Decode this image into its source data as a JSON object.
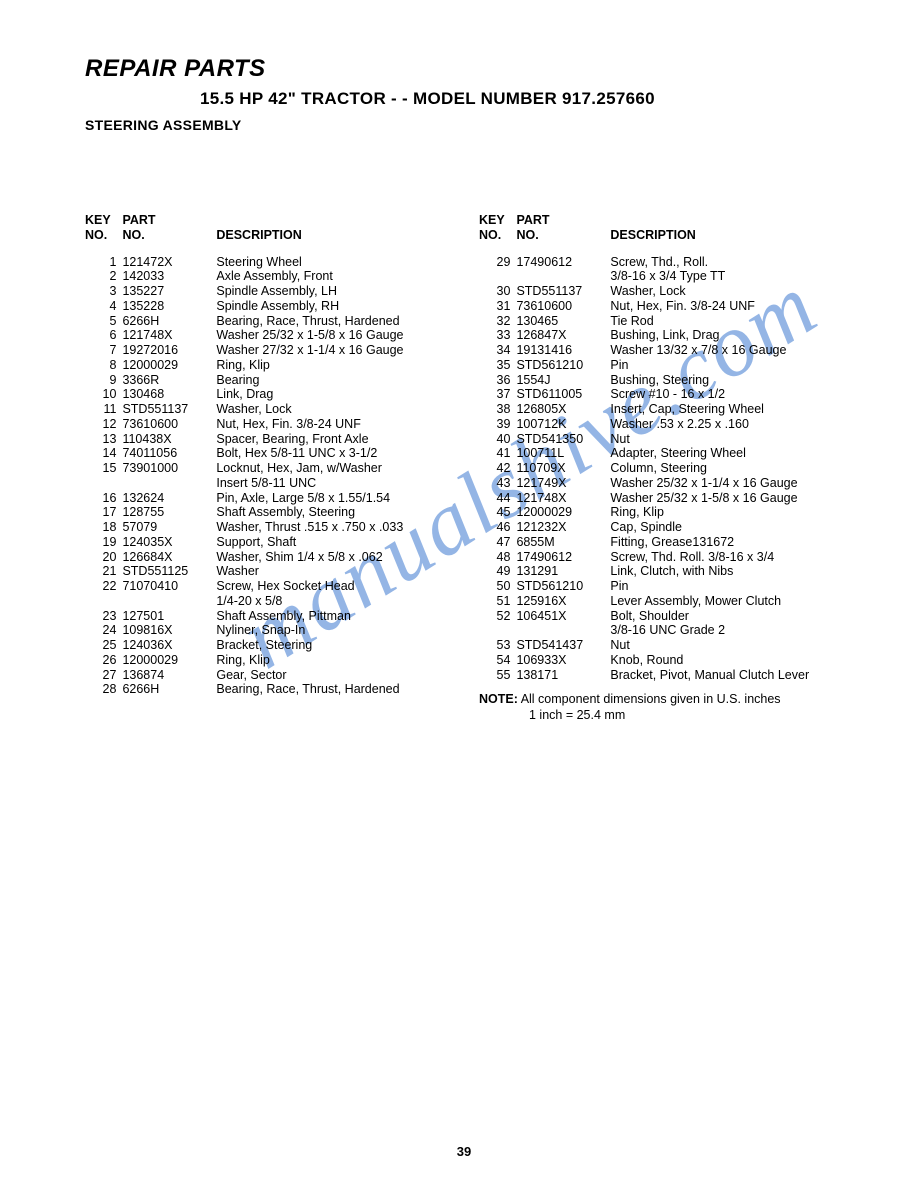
{
  "titles": {
    "main": "REPAIR PARTS",
    "sub": "15.5 HP 42\" TRACTOR - - MODEL NUMBER 917.257660",
    "section": "STEERING ASSEMBLY"
  },
  "headers": {
    "key": "KEY\nNO.",
    "part": "PART\nNO.",
    "desc": "DESCRIPTION"
  },
  "left_parts": [
    {
      "key": "1",
      "part": "121472X",
      "desc": "Steering Wheel"
    },
    {
      "key": "2",
      "part": "142033",
      "desc": "Axle Assembly, Front"
    },
    {
      "key": "3",
      "part": "135227",
      "desc": "Spindle Assembly, LH"
    },
    {
      "key": "4",
      "part": "135228",
      "desc": "Spindle Assembly, RH"
    },
    {
      "key": "5",
      "part": "6266H",
      "desc": "Bearing, Race, Thrust, Hardened"
    },
    {
      "key": "6",
      "part": "121748X",
      "desc": "Washer  25/32 x 1-5/8 x 16 Gauge"
    },
    {
      "key": "7",
      "part": "19272016",
      "desc": "Washer  27/32 x 1-1/4 x 16 Gauge"
    },
    {
      "key": "8",
      "part": "12000029",
      "desc": "Ring, Klip"
    },
    {
      "key": "9",
      "part": "3366R",
      "desc": "Bearing"
    },
    {
      "key": "10",
      "part": "130468",
      "desc": "Link, Drag"
    },
    {
      "key": "11",
      "part": "STD551137",
      "desc": "Washer, Lock"
    },
    {
      "key": "12",
      "part": "73610600",
      "desc": "Nut, Hex, Fin.  3/8-24 UNF"
    },
    {
      "key": "13",
      "part": "110438X",
      "desc": "Spacer, Bearing, Front Axle"
    },
    {
      "key": "14",
      "part": "74011056",
      "desc": "Bolt, Hex  5/8-11 UNC x 3-1/2"
    },
    {
      "key": "15",
      "part": "73901000",
      "desc": "Locknut, Hex, Jam, w/Washer\nInsert  5/8-11 UNC"
    },
    {
      "key": "16",
      "part": "132624",
      "desc": "Pin, Axle, Large  5/8 x 1.55/1.54"
    },
    {
      "key": "17",
      "part": "128755",
      "desc": "Shaft Assembly, Steering"
    },
    {
      "key": "18",
      "part": "57079",
      "desc": "Washer, Thrust  .515 x .750 x .033"
    },
    {
      "key": "19",
      "part": "124035X",
      "desc": "Support, Shaft"
    },
    {
      "key": "20",
      "part": "126684X",
      "desc": "Washer, Shim  1/4 x 5/8 x .062"
    },
    {
      "key": "21",
      "part": "STD551125",
      "desc": "Washer"
    },
    {
      "key": "22",
      "part": "71070410",
      "desc": "Screw, Hex Socket Head\n1/4-20 x 5/8"
    },
    {
      "key": "23",
      "part": "127501",
      "desc": "Shaft Assembly, Pittman"
    },
    {
      "key": "24",
      "part": "109816X",
      "desc": "Nyliner, Snap-In"
    },
    {
      "key": "25",
      "part": "124036X",
      "desc": "Bracket, Steering"
    },
    {
      "key": "26",
      "part": "12000029",
      "desc": "Ring, Klip"
    },
    {
      "key": "27",
      "part": "136874",
      "desc": "Gear, Sector"
    },
    {
      "key": "28",
      "part": "6266H",
      "desc": "Bearing, Race, Thrust, Hardened"
    }
  ],
  "right_parts": [
    {
      "key": "29",
      "part": "17490612",
      "desc": "Screw, Thd., Roll.\n3/8-16 x 3/4 Type TT"
    },
    {
      "key": "30",
      "part": "STD551137",
      "desc": "Washer, Lock"
    },
    {
      "key": "31",
      "part": "73610600",
      "desc": "Nut, Hex, Fin.  3/8-24 UNF"
    },
    {
      "key": "32",
      "part": "130465",
      "desc": "Tie Rod"
    },
    {
      "key": "33",
      "part": "126847X",
      "desc": "Bushing, Link, Drag"
    },
    {
      "key": "34",
      "part": "19131416",
      "desc": "Washer  13/32 x 7/8 x 16 Gauge"
    },
    {
      "key": "35",
      "part": "STD561210",
      "desc": "Pin"
    },
    {
      "key": "36",
      "part": "1554J",
      "desc": "Bushing, Steering"
    },
    {
      "key": "37",
      "part": "STD611005",
      "desc": "Screw #10 - 16 x 1/2"
    },
    {
      "key": "38",
      "part": "126805X",
      "desc": "Insert, Cap, Steering Wheel"
    },
    {
      "key": "39",
      "part": "100712K",
      "desc": "Washer  .53 x 2.25 x .160"
    },
    {
      "key": "40",
      "part": "STD541350",
      "desc": "Nut"
    },
    {
      "key": "41",
      "part": "100711L",
      "desc": "Adapter, Steering Wheel"
    },
    {
      "key": "42",
      "part": "110709X",
      "desc": "Column, Steering"
    },
    {
      "key": "43",
      "part": "121749X",
      "desc": "Washer  25/32 x 1-1/4 x 16 Gauge"
    },
    {
      "key": "44",
      "part": "121748X",
      "desc": "Washer  25/32 x 1-5/8 x 16 Gauge"
    },
    {
      "key": "45",
      "part": "12000029",
      "desc": "Ring, Klip"
    },
    {
      "key": "46",
      "part": "121232X",
      "desc": "Cap, Spindle"
    },
    {
      "key": "47",
      "part": "6855M",
      "desc": "Fitting, Grease131672"
    },
    {
      "key": "48",
      "part": "17490612",
      "desc": "Screw, Thd. Roll.  3/8-16 x 3/4"
    },
    {
      "key": "49",
      "part": "131291",
      "desc": "Link, Clutch, with Nibs"
    },
    {
      "key": "50",
      "part": "STD561210",
      "desc": "Pin"
    },
    {
      "key": "51",
      "part": "125916X",
      "desc": "Lever Assembly, Mower Clutch"
    },
    {
      "key": "52",
      "part": "106451X",
      "desc": "Bolt, Shoulder\n3/8-16 UNC Grade 2"
    },
    {
      "key": "53",
      "part": "STD541437",
      "desc": "Nut"
    },
    {
      "key": "54",
      "part": "106933X",
      "desc": "Knob, Round"
    },
    {
      "key": "55",
      "part": "138171",
      "desc": "Bracket, Pivot, Manual Clutch Lever"
    }
  ],
  "note": {
    "label": "NOTE:",
    "line1": "All component dimensions given in U.S. inches",
    "line2": "1 inch = 25.4 mm"
  },
  "page_number": "39",
  "watermark": "manualshive.com"
}
